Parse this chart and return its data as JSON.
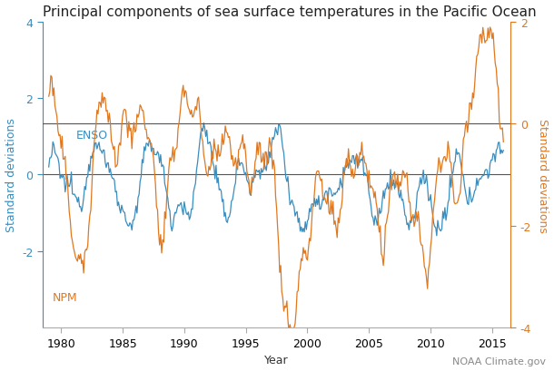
{
  "title": "Principal components of sea surface temperatures in the Pacific Ocean",
  "xlabel": "Year",
  "ylabel_left": "Standard deviations",
  "ylabel_right": "Standard deviations",
  "enso_label": "ENSO",
  "npm_label": "NPM",
  "watermark": "NOAA Climate.gov",
  "enso_color": "#3a8dbd",
  "npm_color": "#e07820",
  "ylim_left": [
    -4,
    4
  ],
  "ylim_right": [
    -4,
    2
  ],
  "yticks_left": [
    -2,
    0,
    2,
    4
  ],
  "yticks_right": [
    -4,
    -2,
    0,
    2
  ],
  "xlim": [
    1978.5,
    2016.5
  ],
  "xticks": [
    1980,
    1985,
    1990,
    1995,
    2000,
    2005,
    2010,
    2015
  ],
  "title_fontsize": 11,
  "label_fontsize": 9,
  "tick_fontsize": 9,
  "watermark_fontsize": 8,
  "bg_color": "#ffffff",
  "zero_line_color": "#555555",
  "spine_color": "#aaaaaa"
}
